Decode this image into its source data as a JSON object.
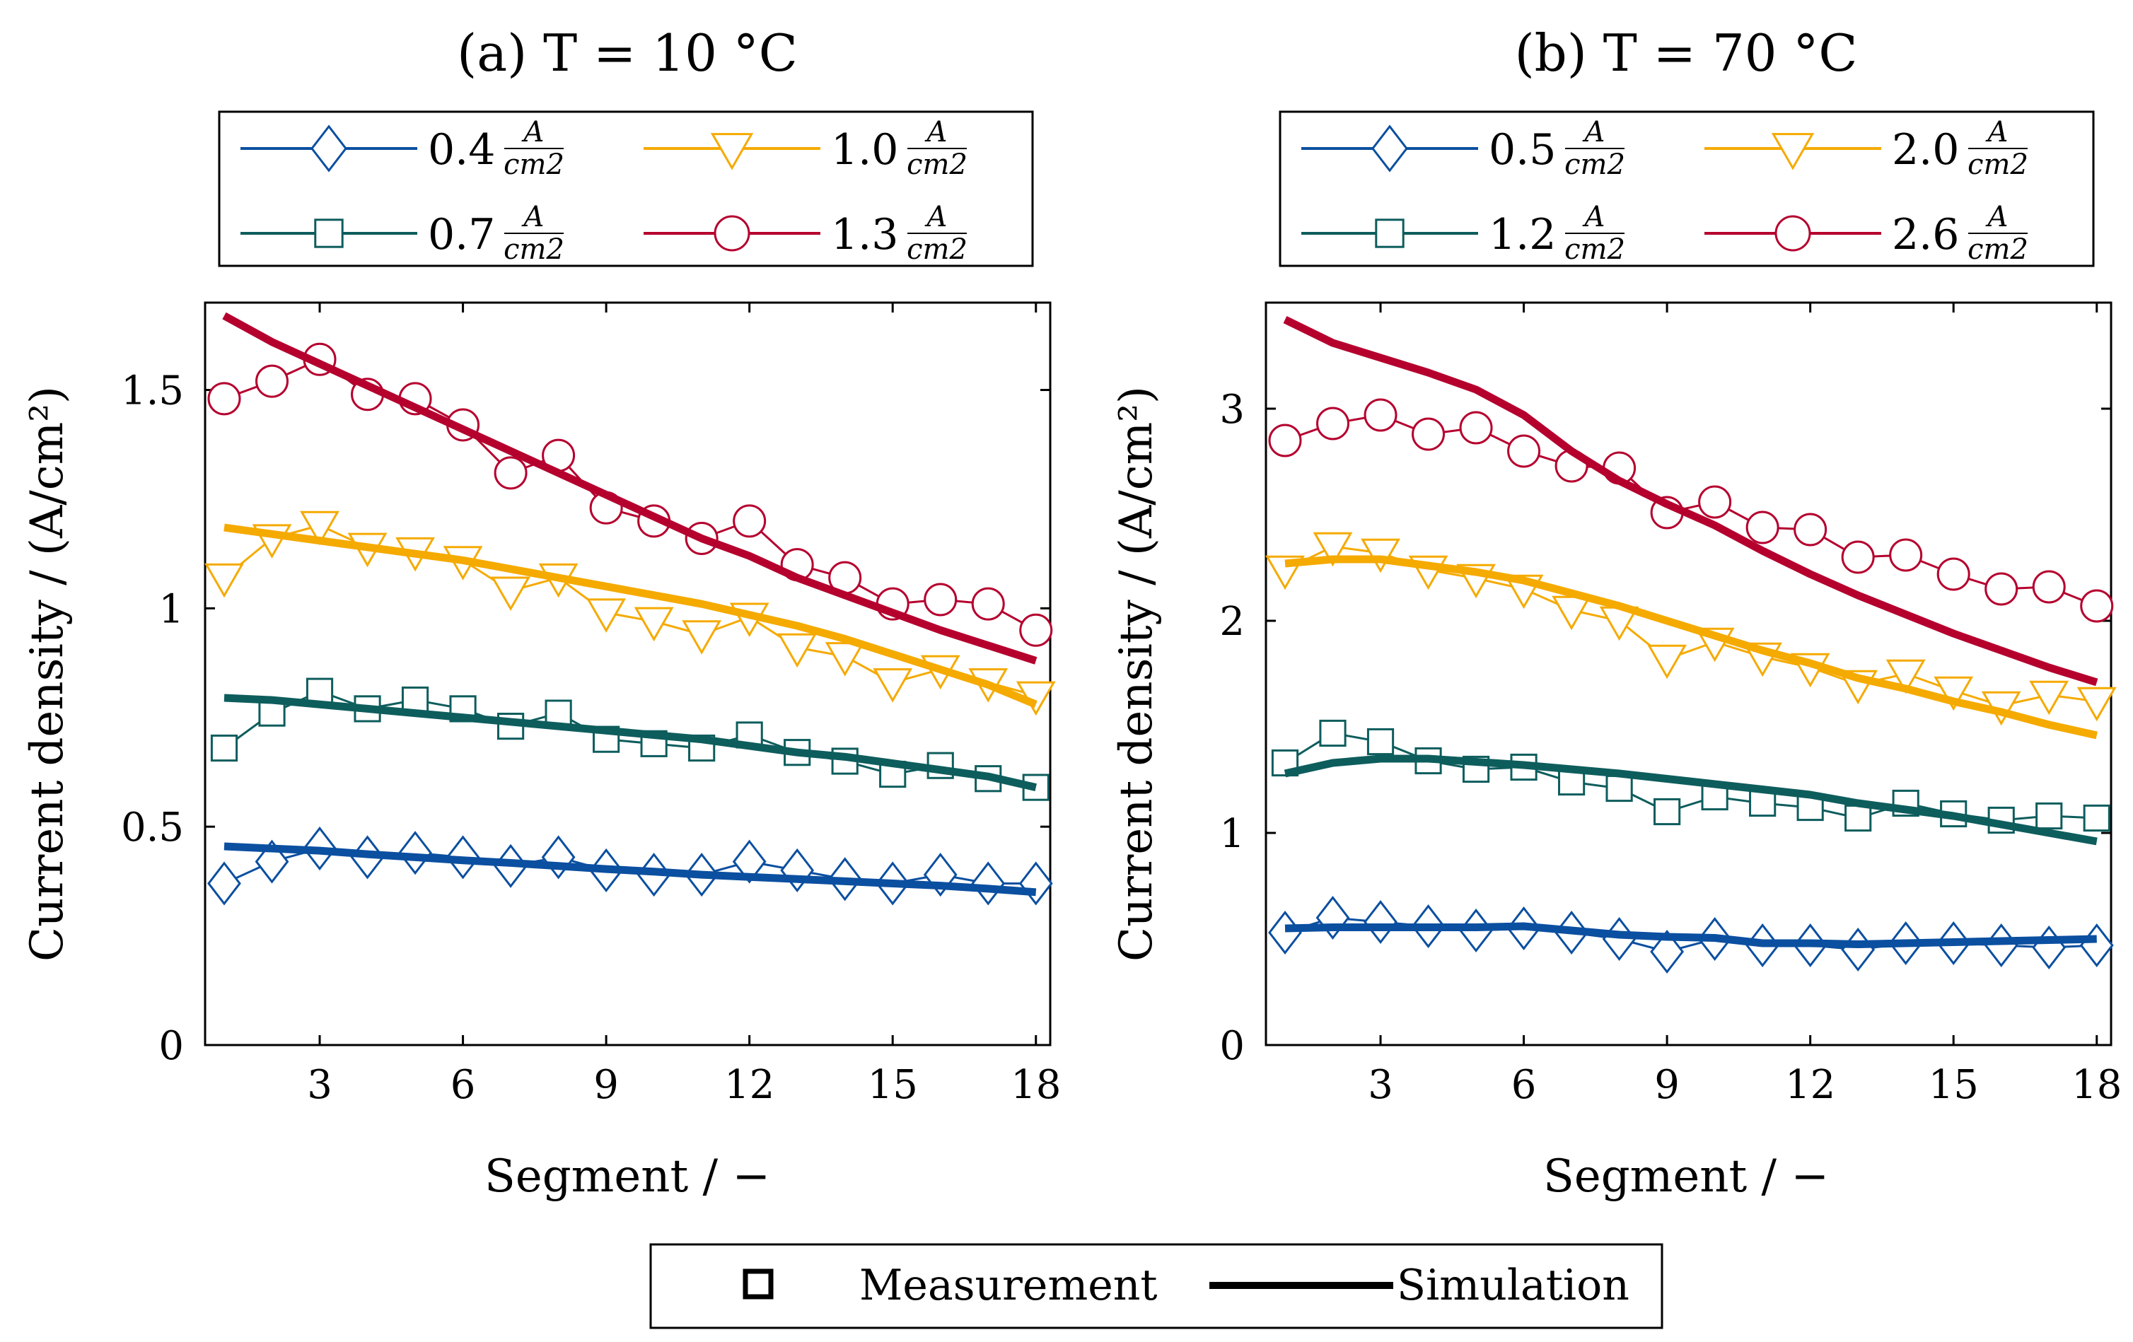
{
  "legend_bottom": {
    "measurement_label": "Measurement",
    "simulation_label": "Simulation"
  },
  "colors": {
    "blue": "#0b4fa0",
    "teal": "#0e5d5d",
    "yellow": "#f5aa00",
    "red": "#b5002e"
  },
  "chart_data": [
    {
      "type": "line",
      "title": "(a) T = 10 °C",
      "xlabel": "Segment / −",
      "ylabel": "Current density / (A/cm²)",
      "xlim": [
        0.6,
        18.3
      ],
      "ylim": [
        0,
        1.7
      ],
      "xticks": [
        3,
        6,
        9,
        12,
        15,
        18
      ],
      "xtick_labels": [
        "3",
        "6",
        "9",
        "12",
        "15",
        "18"
      ],
      "yticks": [
        0,
        0.5,
        1,
        1.5
      ],
      "ytick_labels": [
        "0",
        "0.5",
        "1",
        "1.5"
      ],
      "x": [
        1,
        2,
        3,
        4,
        5,
        6,
        7,
        8,
        9,
        10,
        11,
        12,
        13,
        14,
        15,
        16,
        17,
        18
      ],
      "series": [
        {
          "name": "0.4",
          "unit_num": "A",
          "unit_den": "cm2",
          "color": "blue",
          "marker": "diamond",
          "measurement": [
            0.37,
            0.42,
            0.45,
            0.43,
            0.44,
            0.43,
            0.41,
            0.43,
            0.4,
            0.39,
            0.39,
            0.42,
            0.4,
            0.38,
            0.37,
            0.39,
            0.37,
            0.37
          ],
          "simulation": [
            0.455,
            0.45,
            0.445,
            0.437,
            0.43,
            0.423,
            0.417,
            0.41,
            0.403,
            0.397,
            0.39,
            0.385,
            0.38,
            0.375,
            0.37,
            0.365,
            0.358,
            0.35
          ]
        },
        {
          "name": "0.7",
          "unit_num": "A",
          "unit_den": "cm2",
          "color": "teal",
          "marker": "square",
          "measurement": [
            0.68,
            0.76,
            0.81,
            0.77,
            0.79,
            0.77,
            0.73,
            0.76,
            0.7,
            0.69,
            0.68,
            0.71,
            0.67,
            0.65,
            0.62,
            0.64,
            0.61,
            0.59
          ],
          "simulation": [
            0.795,
            0.79,
            0.78,
            0.77,
            0.76,
            0.75,
            0.74,
            0.73,
            0.72,
            0.71,
            0.7,
            0.685,
            0.67,
            0.66,
            0.645,
            0.63,
            0.615,
            0.59
          ]
        },
        {
          "name": "1.0",
          "unit_num": "A",
          "unit_den": "cm2",
          "color": "yellow",
          "marker": "triangle-down",
          "measurement": [
            1.07,
            1.16,
            1.19,
            1.14,
            1.13,
            1.11,
            1.04,
            1.07,
            0.99,
            0.97,
            0.94,
            0.98,
            0.91,
            0.89,
            0.83,
            0.86,
            0.83,
            0.8
          ],
          "simulation": [
            1.185,
            1.17,
            1.155,
            1.14,
            1.125,
            1.11,
            1.09,
            1.07,
            1.05,
            1.03,
            1.01,
            0.985,
            0.96,
            0.93,
            0.895,
            0.86,
            0.825,
            0.78
          ]
        },
        {
          "name": "1.3",
          "unit_num": "A",
          "unit_den": "cm2",
          "color": "red",
          "marker": "circle",
          "measurement": [
            1.48,
            1.52,
            1.57,
            1.49,
            1.48,
            1.42,
            1.31,
            1.35,
            1.23,
            1.2,
            1.16,
            1.2,
            1.1,
            1.07,
            1.01,
            1.02,
            1.01,
            0.95
          ],
          "simulation": [
            1.67,
            1.61,
            1.56,
            1.51,
            1.46,
            1.41,
            1.36,
            1.31,
            1.26,
            1.21,
            1.16,
            1.12,
            1.07,
            1.03,
            0.99,
            0.95,
            0.915,
            0.88
          ]
        }
      ]
    },
    {
      "type": "line",
      "title": "(b) T = 70 °C",
      "xlabel": "Segment / −",
      "ylabel": "Current density / (A/cm²)",
      "xlim": [
        0.6,
        18.3
      ],
      "ylim": [
        0,
        3.5
      ],
      "xticks": [
        3,
        6,
        9,
        12,
        15,
        18
      ],
      "xtick_labels": [
        "3",
        "6",
        "9",
        "12",
        "15",
        "18"
      ],
      "yticks": [
        0,
        1,
        2,
        3
      ],
      "ytick_labels": [
        "0",
        "1",
        "2",
        "3"
      ],
      "x": [
        1,
        2,
        3,
        4,
        5,
        6,
        7,
        8,
        9,
        10,
        11,
        12,
        13,
        14,
        15,
        16,
        17,
        18
      ],
      "series": [
        {
          "name": "0.5",
          "unit_num": "A",
          "unit_den": "cm2",
          "color": "blue",
          "marker": "diamond",
          "measurement": [
            0.53,
            0.6,
            0.58,
            0.56,
            0.54,
            0.55,
            0.53,
            0.5,
            0.44,
            0.5,
            0.47,
            0.47,
            0.45,
            0.48,
            0.48,
            0.47,
            0.46,
            0.47
          ],
          "simulation": [
            0.55,
            0.555,
            0.555,
            0.555,
            0.555,
            0.56,
            0.54,
            0.52,
            0.51,
            0.505,
            0.48,
            0.48,
            0.475,
            0.48,
            0.485,
            0.49,
            0.495,
            0.5
          ]
        },
        {
          "name": "1.2",
          "unit_num": "A",
          "unit_den": "cm2",
          "color": "teal",
          "marker": "square",
          "measurement": [
            1.33,
            1.47,
            1.43,
            1.34,
            1.3,
            1.31,
            1.24,
            1.21,
            1.1,
            1.17,
            1.14,
            1.12,
            1.07,
            1.14,
            1.09,
            1.06,
            1.08,
            1.07
          ],
          "simulation": [
            1.28,
            1.33,
            1.35,
            1.35,
            1.335,
            1.32,
            1.3,
            1.28,
            1.255,
            1.23,
            1.205,
            1.18,
            1.14,
            1.11,
            1.08,
            1.04,
            1.0,
            0.96
          ]
        },
        {
          "name": "2.0",
          "unit_num": "A",
          "unit_den": "cm2",
          "color": "yellow",
          "marker": "triangle-down",
          "measurement": [
            2.24,
            2.35,
            2.32,
            2.24,
            2.2,
            2.15,
            2.05,
            2.0,
            1.82,
            1.9,
            1.83,
            1.78,
            1.7,
            1.75,
            1.67,
            1.6,
            1.65,
            1.62
          ],
          "simulation": [
            2.27,
            2.29,
            2.29,
            2.26,
            2.23,
            2.19,
            2.13,
            2.07,
            2.0,
            1.93,
            1.86,
            1.8,
            1.73,
            1.68,
            1.62,
            1.57,
            1.51,
            1.46
          ]
        },
        {
          "name": "2.6",
          "unit_num": "A",
          "unit_den": "cm2",
          "color": "red",
          "marker": "circle",
          "measurement": [
            2.85,
            2.93,
            2.97,
            2.88,
            2.91,
            2.8,
            2.73,
            2.72,
            2.51,
            2.56,
            2.44,
            2.43,
            2.3,
            2.31,
            2.22,
            2.15,
            2.16,
            2.07
          ],
          "simulation": [
            3.42,
            3.31,
            3.24,
            3.17,
            3.09,
            2.97,
            2.8,
            2.66,
            2.55,
            2.45,
            2.33,
            2.22,
            2.12,
            2.03,
            1.94,
            1.86,
            1.78,
            1.71
          ]
        }
      ]
    }
  ]
}
